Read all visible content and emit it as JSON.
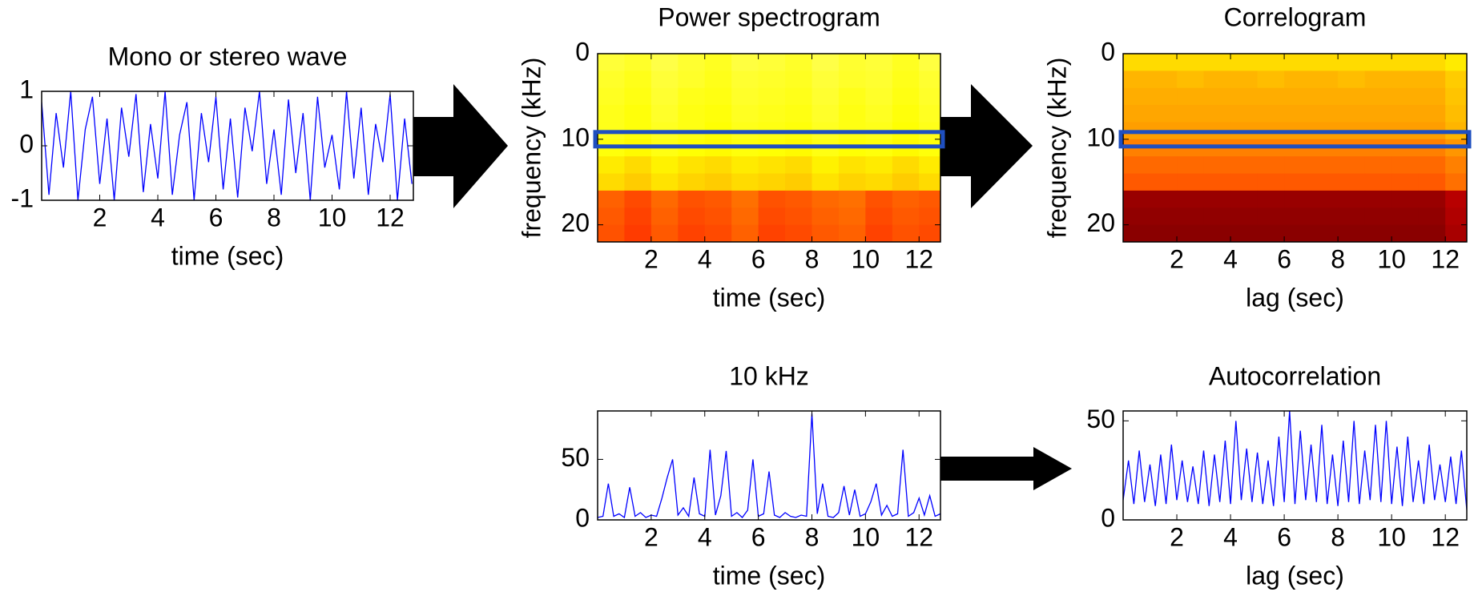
{
  "chart_data": [
    {
      "type": "line",
      "title": "Mono or stereo wave",
      "xlabel": "time (sec)",
      "color": "#0000ff",
      "xlim": [
        0,
        12.8
      ],
      "ylim": [
        -1,
        1
      ],
      "xticks": [
        2,
        4,
        6,
        8,
        10,
        12
      ],
      "yticks": [
        -1,
        0,
        1
      ],
      "x": [
        0,
        0.25,
        0.5,
        0.75,
        1,
        1.25,
        1.5,
        1.75,
        2,
        2.25,
        2.5,
        2.75,
        3,
        3.25,
        3.5,
        3.75,
        4,
        4.25,
        4.5,
        4.75,
        5,
        5.25,
        5.5,
        5.75,
        6,
        6.25,
        6.5,
        6.75,
        7,
        7.25,
        7.5,
        7.75,
        8,
        8.25,
        8.5,
        8.75,
        9,
        9.25,
        9.5,
        9.75,
        10,
        10.25,
        10.5,
        10.75,
        11,
        11.25,
        11.5,
        11.75,
        12,
        12.25,
        12.5,
        12.75
      ],
      "values": [
        0.8,
        -0.9,
        0.6,
        -0.4,
        1,
        -1,
        0.3,
        0.9,
        -0.7,
        0.5,
        -1,
        0.7,
        -0.2,
        0.95,
        -0.85,
        0.4,
        -0.6,
        1,
        -0.9,
        0.2,
        0.8,
        -1,
        0.6,
        -0.3,
        0.9,
        -0.8,
        0.5,
        -0.95,
        0.7,
        -0.1,
        1,
        -0.7,
        0.3,
        -0.9,
        0.85,
        -0.5,
        0.6,
        -1,
        0.9,
        -0.4,
        0.2,
        -0.8,
        1,
        -0.6,
        0.7,
        -0.9,
        0.4,
        -0.3,
        0.95,
        -1,
        0.5,
        -0.7
      ]
    },
    {
      "type": "heatmap",
      "title": "Power spectrogram",
      "xlabel": "time (sec)",
      "ylabel": "frequency (kHz)",
      "colormap": "hot",
      "yreverse": true,
      "xlim": [
        0,
        12.8
      ],
      "ylim": [
        0,
        22
      ],
      "xticks": [
        2,
        4,
        6,
        8,
        10,
        12
      ],
      "yticks": [
        0,
        10,
        20
      ],
      "x": [
        0.5,
        1.5,
        2.5,
        3.5,
        4.5,
        5.5,
        6.5,
        7.5,
        8.5,
        9.5,
        10.5,
        11.5,
        12.5
      ],
      "y": [
        1,
        3,
        5,
        7,
        9,
        11,
        13,
        15,
        17,
        19,
        21
      ],
      "z": [
        [
          0.74,
          0.72,
          0.76,
          0.73,
          0.71,
          0.75,
          0.74,
          0.72,
          0.76,
          0.73,
          0.74,
          0.71,
          0.75
        ],
        [
          0.72,
          0.7,
          0.74,
          0.72,
          0.7,
          0.73,
          0.72,
          0.71,
          0.74,
          0.72,
          0.73,
          0.7,
          0.73
        ],
        [
          0.71,
          0.69,
          0.73,
          0.7,
          0.69,
          0.72,
          0.71,
          0.7,
          0.73,
          0.7,
          0.72,
          0.69,
          0.72
        ],
        [
          0.7,
          0.68,
          0.72,
          0.69,
          0.68,
          0.71,
          0.7,
          0.69,
          0.72,
          0.69,
          0.71,
          0.68,
          0.71
        ],
        [
          0.7,
          0.68,
          0.71,
          0.69,
          0.67,
          0.7,
          0.69,
          0.68,
          0.71,
          0.69,
          0.7,
          0.67,
          0.7
        ],
        [
          0.68,
          0.66,
          0.69,
          0.67,
          0.66,
          0.68,
          0.67,
          0.66,
          0.69,
          0.67,
          0.68,
          0.66,
          0.68
        ],
        [
          0.64,
          0.62,
          0.65,
          0.63,
          0.62,
          0.64,
          0.63,
          0.62,
          0.65,
          0.63,
          0.64,
          0.62,
          0.64
        ],
        [
          0.62,
          0.6,
          0.63,
          0.61,
          0.6,
          0.62,
          0.61,
          0.6,
          0.63,
          0.61,
          0.62,
          0.6,
          0.62
        ],
        [
          0.46,
          0.43,
          0.47,
          0.44,
          0.45,
          0.48,
          0.44,
          0.45,
          0.47,
          0.48,
          0.44,
          0.46,
          0.45
        ],
        [
          0.45,
          0.42,
          0.46,
          0.43,
          0.44,
          0.47,
          0.43,
          0.44,
          0.46,
          0.47,
          0.43,
          0.45,
          0.44
        ],
        [
          0.44,
          0.41,
          0.45,
          0.42,
          0.43,
          0.46,
          0.42,
          0.43,
          0.45,
          0.46,
          0.42,
          0.44,
          0.43
        ]
      ]
    },
    {
      "type": "heatmap",
      "title": "Correlogram",
      "xlabel": "lag (sec)",
      "ylabel": "frequency (kHz)",
      "colormap": "hot",
      "yreverse": true,
      "xlim": [
        0,
        12.8
      ],
      "ylim": [
        0,
        22
      ],
      "xticks": [
        2,
        4,
        6,
        8,
        10,
        12
      ],
      "yticks": [
        0,
        10,
        20
      ],
      "x": [
        0.5,
        1.5,
        2.5,
        3.5,
        4.5,
        5.5,
        6.5,
        7.5,
        8.5,
        9.5,
        10.5,
        11.5,
        12.5
      ],
      "y": [
        1,
        3,
        5,
        7,
        9,
        11,
        13,
        15,
        17,
        19,
        21
      ],
      "z": [
        [
          0.62,
          0.62,
          0.62,
          0.62,
          0.62,
          0.62,
          0.62,
          0.62,
          0.62,
          0.62,
          0.62,
          0.62,
          0.64
        ],
        [
          0.57,
          0.57,
          0.58,
          0.57,
          0.57,
          0.58,
          0.57,
          0.57,
          0.58,
          0.57,
          0.57,
          0.57,
          0.6
        ],
        [
          0.56,
          0.56,
          0.56,
          0.56,
          0.56,
          0.56,
          0.56,
          0.56,
          0.56,
          0.56,
          0.56,
          0.56,
          0.59
        ],
        [
          0.55,
          0.55,
          0.55,
          0.55,
          0.55,
          0.55,
          0.55,
          0.55,
          0.55,
          0.55,
          0.55,
          0.55,
          0.58
        ],
        [
          0.54,
          0.54,
          0.54,
          0.54,
          0.54,
          0.54,
          0.54,
          0.54,
          0.54,
          0.54,
          0.54,
          0.54,
          0.57
        ],
        [
          0.5,
          0.5,
          0.5,
          0.5,
          0.5,
          0.5,
          0.5,
          0.5,
          0.5,
          0.5,
          0.5,
          0.5,
          0.53
        ],
        [
          0.47,
          0.47,
          0.47,
          0.47,
          0.47,
          0.47,
          0.47,
          0.47,
          0.47,
          0.47,
          0.47,
          0.47,
          0.5
        ],
        [
          0.45,
          0.45,
          0.45,
          0.45,
          0.45,
          0.45,
          0.45,
          0.45,
          0.45,
          0.45,
          0.45,
          0.45,
          0.48
        ],
        [
          0.2,
          0.2,
          0.2,
          0.2,
          0.2,
          0.2,
          0.2,
          0.2,
          0.2,
          0.2,
          0.2,
          0.2,
          0.24
        ],
        [
          0.19,
          0.19,
          0.19,
          0.19,
          0.19,
          0.19,
          0.19,
          0.19,
          0.19,
          0.19,
          0.19,
          0.19,
          0.23
        ],
        [
          0.18,
          0.18,
          0.18,
          0.18,
          0.18,
          0.18,
          0.18,
          0.18,
          0.18,
          0.18,
          0.18,
          0.18,
          0.22
        ]
      ]
    },
    {
      "type": "line",
      "title": "10 kHz",
      "xlabel": "time (sec)",
      "color": "#0000ff",
      "xlim": [
        0,
        12.8
      ],
      "ylim": [
        0,
        90
      ],
      "xticks": [
        2,
        4,
        6,
        8,
        10,
        12
      ],
      "yticks": [
        0,
        50
      ],
      "x": [
        0,
        0.2,
        0.4,
        0.6,
        0.8,
        1,
        1.2,
        1.4,
        1.6,
        1.8,
        2,
        2.2,
        2.4,
        2.6,
        2.8,
        3,
        3.2,
        3.4,
        3.6,
        3.8,
        4,
        4.2,
        4.4,
        4.6,
        4.8,
        5,
        5.2,
        5.4,
        5.6,
        5.8,
        6,
        6.2,
        6.4,
        6.6,
        6.8,
        7,
        7.2,
        7.4,
        7.6,
        7.8,
        8,
        8.2,
        8.4,
        8.6,
        8.8,
        9,
        9.2,
        9.4,
        9.6,
        9.8,
        10,
        10.2,
        10.4,
        10.6,
        10.8,
        11,
        11.2,
        11.4,
        11.6,
        11.8,
        12,
        12.2,
        12.4,
        12.6,
        12.8
      ],
      "values": [
        2,
        3,
        30,
        3,
        5,
        2,
        27,
        3,
        6,
        2,
        4,
        3,
        18,
        35,
        50,
        4,
        10,
        3,
        35,
        5,
        3,
        58,
        4,
        20,
        57,
        3,
        6,
        2,
        8,
        50,
        3,
        5,
        40,
        4,
        2,
        6,
        3,
        2,
        4,
        3,
        88,
        5,
        30,
        3,
        2,
        6,
        28,
        4,
        25,
        3,
        5,
        15,
        30,
        4,
        12,
        3,
        5,
        58,
        3,
        6,
        18,
        4,
        20,
        3,
        5
      ]
    },
    {
      "type": "line",
      "title": "Autocorrelation",
      "xlabel": "lag (sec)",
      "color": "#0000ff",
      "xlim": [
        0,
        12.8
      ],
      "ylim": [
        0,
        55
      ],
      "xticks": [
        2,
        4,
        6,
        8,
        10,
        12
      ],
      "yticks": [
        0,
        50
      ],
      "x": [
        0,
        0.2,
        0.4,
        0.6,
        0.8,
        1,
        1.2,
        1.4,
        1.6,
        1.8,
        2,
        2.2,
        2.4,
        2.6,
        2.8,
        3,
        3.2,
        3.4,
        3.6,
        3.8,
        4,
        4.2,
        4.4,
        4.6,
        4.8,
        5,
        5.2,
        5.4,
        5.6,
        5.8,
        6,
        6.2,
        6.4,
        6.6,
        6.8,
        7,
        7.2,
        7.4,
        7.6,
        7.8,
        8,
        8.2,
        8.4,
        8.6,
        8.8,
        9,
        9.2,
        9.4,
        9.6,
        9.8,
        10,
        10.2,
        10.4,
        10.6,
        10.8,
        11,
        11.2,
        11.4,
        11.6,
        11.8,
        12,
        12.2,
        12.4,
        12.6,
        12.8
      ],
      "values": [
        10,
        30,
        8,
        35,
        9,
        28,
        7,
        33,
        8,
        38,
        10,
        30,
        9,
        27,
        8,
        35,
        7,
        33,
        9,
        40,
        8,
        50,
        10,
        36,
        9,
        34,
        8,
        30,
        7,
        42,
        9,
        55,
        8,
        45,
        10,
        38,
        9,
        48,
        8,
        33,
        7,
        40,
        9,
        50,
        8,
        35,
        10,
        48,
        9,
        50,
        8,
        37,
        7,
        42,
        9,
        30,
        8,
        38,
        10,
        28,
        9,
        32,
        8,
        35,
        5
      ]
    }
  ]
}
